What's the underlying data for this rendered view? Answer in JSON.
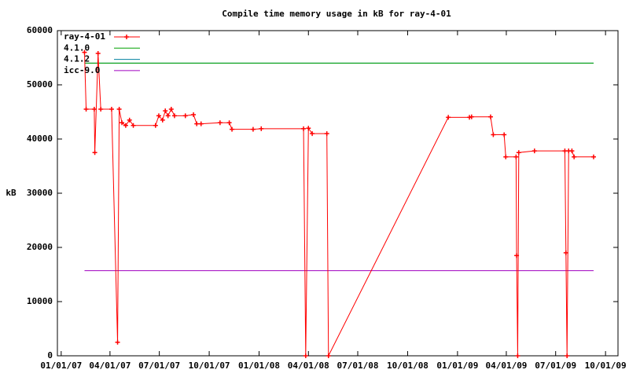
{
  "chart_data": {
    "type": "line",
    "title": "Compile time memory usage in kB for ray-4-01",
    "y_label": "kB",
    "xlim": [
      "2006-12-25",
      "2009-10-24"
    ],
    "xticks": [
      {
        "value": "2007-01-01",
        "label": "01/01/07"
      },
      {
        "value": "2007-04-01",
        "label": "04/01/07"
      },
      {
        "value": "2007-07-01",
        "label": "07/01/07"
      },
      {
        "value": "2007-10-01",
        "label": "10/01/07"
      },
      {
        "value": "2008-01-01",
        "label": "01/01/08"
      },
      {
        "value": "2008-04-01",
        "label": "04/01/08"
      },
      {
        "value": "2008-07-01",
        "label": "07/01/08"
      },
      {
        "value": "2008-10-01",
        "label": "10/01/08"
      },
      {
        "value": "2009-01-01",
        "label": "01/01/09"
      },
      {
        "value": "2009-04-01",
        "label": "04/01/09"
      },
      {
        "value": "2009-07-01",
        "label": "07/01/09"
      },
      {
        "value": "2009-10-01",
        "label": "10/01/09"
      }
    ],
    "ylim": [
      0,
      60000
    ],
    "yticks": [
      0,
      10000,
      20000,
      30000,
      40000,
      50000,
      60000
    ],
    "legend": "top-left",
    "series": [
      {
        "name": "ray-4-01",
        "color": "#ff0000",
        "markers": true,
        "x": [
          "2007-02-13",
          "2007-02-16",
          "2007-03-03",
          "2007-03-04",
          "2007-03-10",
          "2007-03-15",
          "2007-04-04",
          "2007-04-15",
          "2007-04-18",
          "2007-04-23",
          "2007-04-30",
          "2007-05-07",
          "2007-05-14",
          "2007-06-24",
          "2007-06-30",
          "2007-07-07",
          "2007-07-12",
          "2007-07-17",
          "2007-07-23",
          "2007-07-29",
          "2007-08-18",
          "2007-09-02",
          "2007-09-08",
          "2007-09-16",
          "2007-10-21",
          "2007-11-07",
          "2007-11-12",
          "2007-12-21",
          "2008-01-05",
          "2008-03-23",
          "2008-03-27",
          "2008-04-01",
          "2008-04-08",
          "2008-05-05",
          "2008-05-08",
          "2008-12-15",
          "2009-01-23",
          "2009-01-27",
          "2009-03-03",
          "2009-03-08",
          "2009-03-28",
          "2009-03-31",
          "2009-04-19",
          "2009-04-20",
          "2009-04-22",
          "2009-04-24",
          "2009-05-23",
          "2009-07-18",
          "2009-07-20",
          "2009-07-22",
          "2009-07-25",
          "2009-07-31",
          "2009-08-04",
          "2009-09-09"
        ],
        "values": [
          56000,
          45500,
          45500,
          37500,
          55800,
          45500,
          45500,
          2500,
          45500,
          43000,
          42500,
          43500,
          42500,
          42500,
          44300,
          43500,
          45200,
          44300,
          45500,
          44300,
          44300,
          44500,
          42800,
          42800,
          43000,
          43000,
          41800,
          41800,
          41900,
          41900,
          0,
          42000,
          41000,
          41000,
          0,
          44000,
          44000,
          44100,
          44100,
          40800,
          40800,
          36700,
          36700,
          18500,
          0,
          37500,
          37800,
          37800,
          19000,
          0,
          37800,
          37800,
          36700,
          36700
        ]
      },
      {
        "name": "4.1.0",
        "color": "#00a000",
        "markers": false,
        "x": [
          "2007-02-13",
          "2009-09-09"
        ],
        "values": [
          54000,
          54000
        ]
      },
      {
        "name": "4.1.2",
        "color": "#0080a0",
        "markers": false,
        "x": [
          "2007-02-13",
          "2009-09-09"
        ],
        "values": [
          54000,
          54000
        ]
      },
      {
        "name": "icc-9.0",
        "color": "#a000c0",
        "markers": false,
        "x": [
          "2007-02-13",
          "2009-09-09"
        ],
        "values": [
          15700,
          15700
        ]
      }
    ]
  }
}
